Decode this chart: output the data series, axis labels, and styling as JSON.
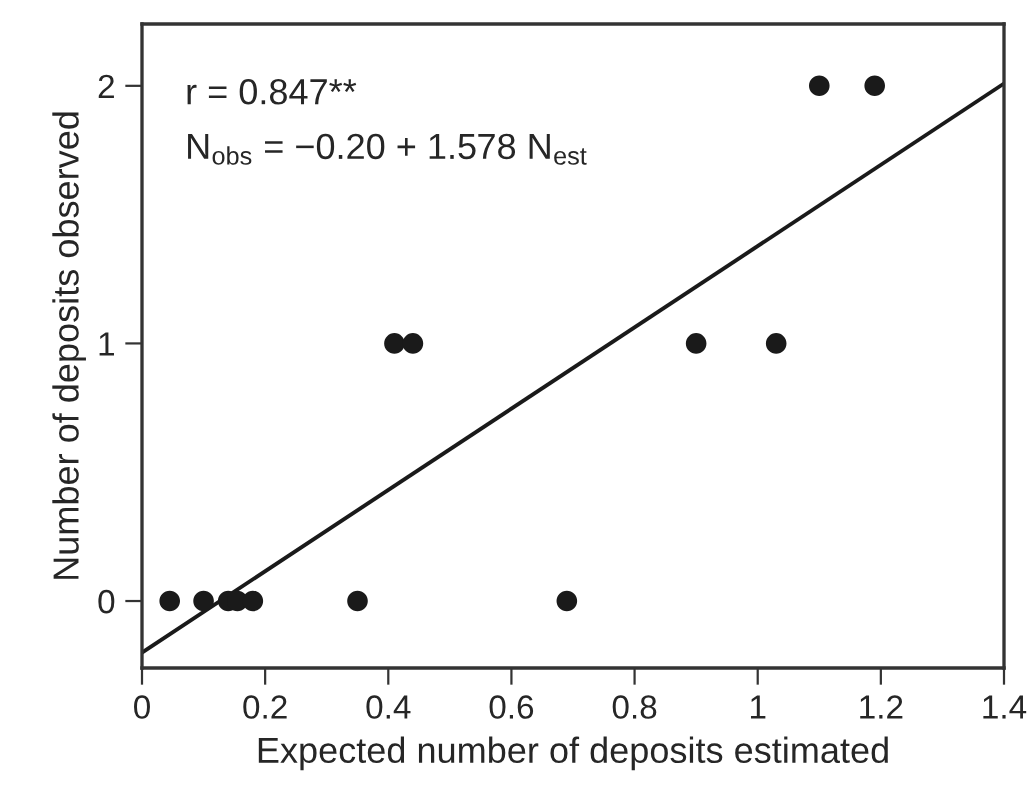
{
  "chart_data": {
    "type": "scatter",
    "xlabel": "Expected number of deposits estimated",
    "ylabel": "Number of deposits observed",
    "x": [
      0.045,
      0.1,
      0.14,
      0.155,
      0.18,
      0.35,
      0.69,
      0.41,
      0.44,
      0.9,
      1.03,
      1.1,
      1.19
    ],
    "series": [
      {
        "color": "#1a1a1a",
        "marker": "circle",
        "values": [
          0,
          0,
          0,
          0,
          0,
          0,
          0,
          1,
          1,
          1,
          1,
          2,
          2
        ]
      },
      {
        "type": "line",
        "color": "#1a1a1a",
        "x": [
          0,
          1.4
        ],
        "values": [
          -0.2,
          2.009
        ],
        "line_style": "solid"
      }
    ],
    "annotations": [
      "r = 0.847**",
      "N$_{obs}$ = −0.20 + 1.578 N$_{est}$"
    ],
    "xlim": [
      0,
      1.4
    ],
    "xticks": [
      0,
      0.2,
      0.4,
      0.6,
      0.8,
      {
        "value": 1,
        "label": "1"
      },
      1.2,
      1.4
    ],
    "ylim": [
      -0.26,
      2.24
    ],
    "yticks": [
      0,
      1,
      2
    ],
    "grid": false
  }
}
